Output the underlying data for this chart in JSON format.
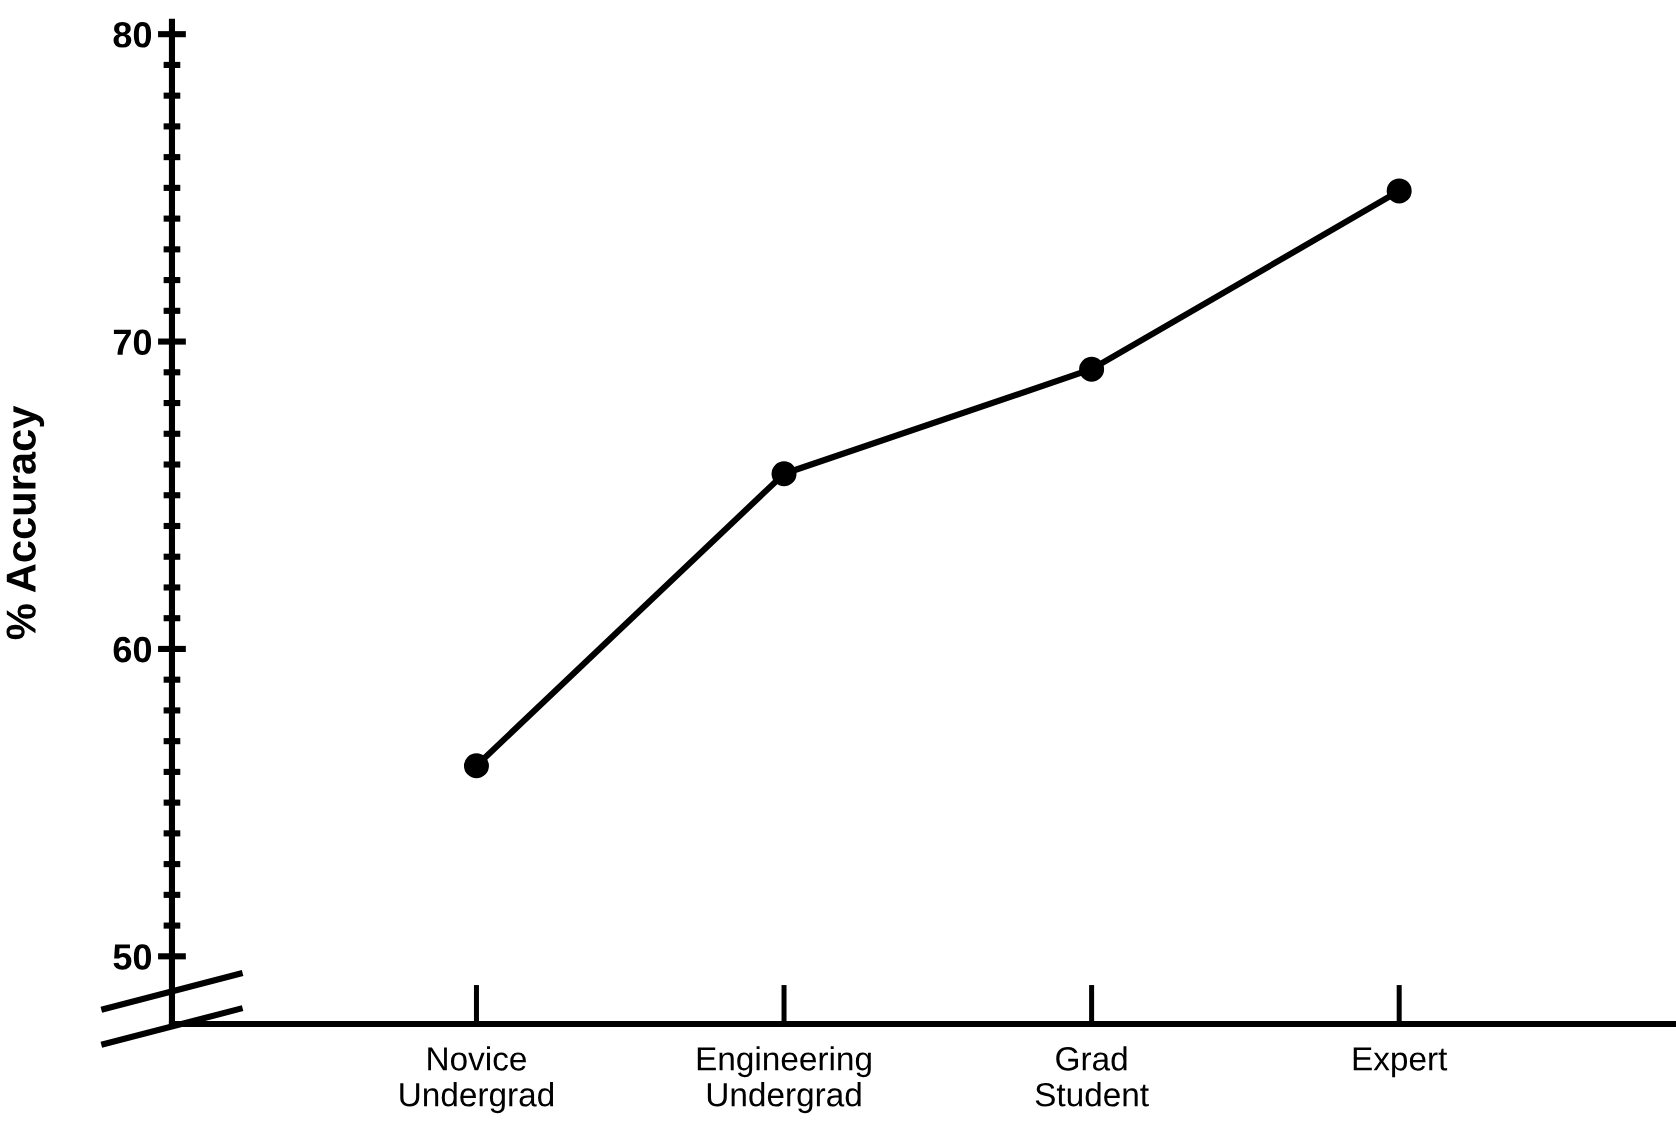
{
  "chart_data": {
    "type": "line",
    "ylabel": "% Accuracy",
    "categories": [
      "Novice\nUndergrad",
      "Engineering\nUndergrad",
      "Grad\nStudent",
      "Expert"
    ],
    "series": [
      {
        "color": "#000000",
        "values": [
          56.2,
          65.7,
          69.1,
          74.9
        ]
      }
    ],
    "ylim": [
      47.8,
      80.4
    ],
    "yticks": [
      50,
      {
        "value": 51,
        "label": null
      },
      {
        "value": 52,
        "label": null
      },
      {
        "value": 53,
        "label": null
      },
      {
        "value": 54,
        "label": null
      },
      {
        "value": 55,
        "label": null
      },
      {
        "value": 56,
        "label": null
      },
      {
        "value": 57,
        "label": null
      },
      {
        "value": 58,
        "label": null
      },
      {
        "value": 59,
        "label": null
      },
      60,
      {
        "value": 61,
        "label": null
      },
      {
        "value": 62,
        "label": null
      },
      {
        "value": 63,
        "label": null
      },
      {
        "value": 64,
        "label": null
      },
      {
        "value": 65,
        "label": null
      },
      {
        "value": 66,
        "label": null
      },
      {
        "value": 67,
        "label": null
      },
      {
        "value": 68,
        "label": null
      },
      {
        "value": 69,
        "label": null
      },
      70,
      {
        "value": 71,
        "label": null
      },
      {
        "value": 72,
        "label": null
      },
      {
        "value": 73,
        "label": null
      },
      {
        "value": 74,
        "label": null
      },
      {
        "value": 75,
        "label": null
      },
      {
        "value": 76,
        "label": null
      },
      {
        "value": 77,
        "label": null
      },
      {
        "value": 78,
        "label": null
      },
      {
        "value": 79,
        "label": null
      },
      80
    ],
    "marker": "circle",
    "line_style": "solid",
    "grid": false,
    "legend": false
  }
}
